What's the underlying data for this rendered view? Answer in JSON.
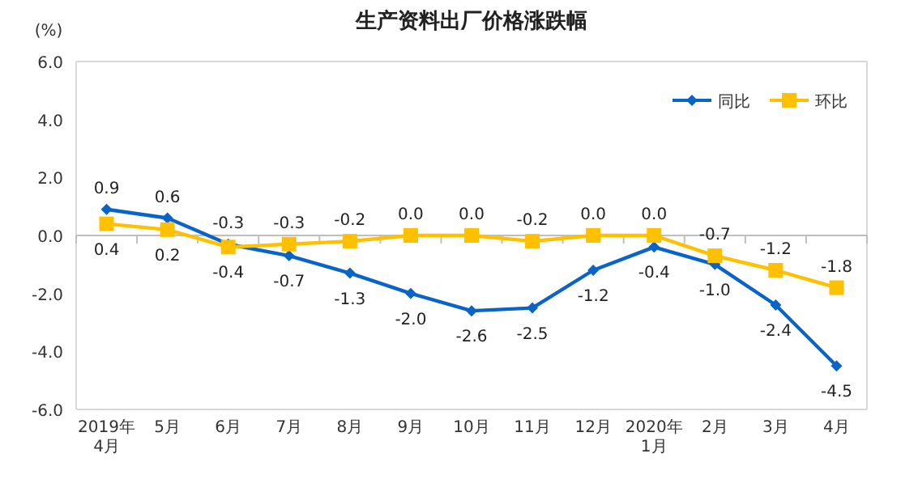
{
  "chart_data": {
    "type": "line",
    "title": "生产资料出厂价格涨跌幅",
    "ylabel": "(%)",
    "categories": [
      "2019年\n4月",
      "5月",
      "6月",
      "7月",
      "8月",
      "9月",
      "10月",
      "11月",
      "12月",
      "2020年\n1月",
      "2月",
      "3月",
      "4月"
    ],
    "series": [
      {
        "name": "同比",
        "color": "#0a64c8",
        "marker": "diamond",
        "values": [
          0.9,
          0.6,
          -0.3,
          -0.7,
          -1.3,
          -2.0,
          -2.6,
          -2.5,
          -1.2,
          -0.4,
          -1.0,
          -2.4,
          -4.5
        ],
        "value_labels": [
          "0.9",
          "0.6",
          "-0.3",
          "-0.7",
          "-1.3",
          "-2.0",
          "-2.6",
          "-2.5",
          "-1.2",
          "-0.4",
          "-1.0",
          "-2.4",
          "-4.5"
        ]
      },
      {
        "name": "环比",
        "color": "#ffc000",
        "marker": "square",
        "values": [
          0.4,
          0.2,
          -0.4,
          -0.3,
          -0.2,
          0.0,
          0.0,
          -0.2,
          0.0,
          0.0,
          -0.7,
          -1.2,
          -1.8
        ],
        "value_labels": [
          "0.4",
          "0.2",
          "-0.4",
          "-0.3",
          "-0.2",
          "0.0",
          "0.0",
          "-0.2",
          "0.0",
          "0.0",
          "-0.7",
          "-1.2",
          "-1.8"
        ]
      }
    ],
    "ylim": [
      -6,
      6
    ],
    "yticks": [
      {
        "value": -6,
        "label": "-6.0"
      },
      {
        "value": -4,
        "label": "-4.0"
      },
      {
        "value": -2,
        "label": "-2.0"
      },
      {
        "value": 0,
        "label": "0.0"
      },
      {
        "value": 2,
        "label": "2.0"
      },
      {
        "value": 4,
        "label": "4.0"
      },
      {
        "value": 6,
        "label": "6.0"
      }
    ],
    "legend": "top right"
  }
}
